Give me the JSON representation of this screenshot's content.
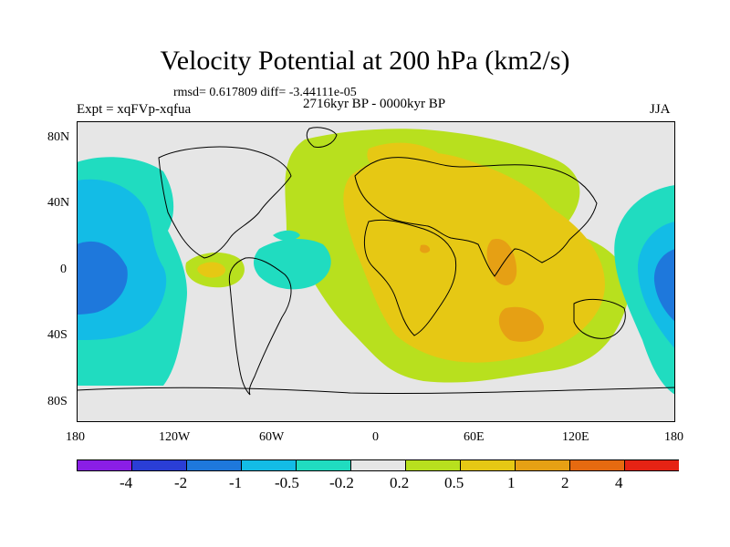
{
  "title": "Velocity Potential at 200 hPa (km2/s)",
  "stats_line": "rmsd= 0.617809 diff= -3.44111e-05",
  "experiment": "Expt = xqFVp-xqfua",
  "period": "2716kyr BP - 0000kyr BP",
  "season": "JJA",
  "y_ticks": [
    "80N",
    "40N",
    "0",
    "40S",
    "80S"
  ],
  "x_ticks": [
    "180",
    "120W",
    "60W",
    "0",
    "60E",
    "120E",
    "180"
  ],
  "colorbar": {
    "labels": [
      "-4",
      "-2",
      "-1",
      "-0.5",
      "-0.2",
      "0.2",
      "0.5",
      "1",
      "2",
      "4"
    ],
    "colors": [
      "#8a1ee6",
      "#2a3ed6",
      "#1e78dc",
      "#13bce6",
      "#20dcc0",
      "#e6e6e6",
      "#b8e01e",
      "#e6c814",
      "#e6a014",
      "#e66a10",
      "#e62314"
    ]
  },
  "colors": {
    "ocean_land_background": "#e6e6e6",
    "coastline": "#000000"
  }
}
